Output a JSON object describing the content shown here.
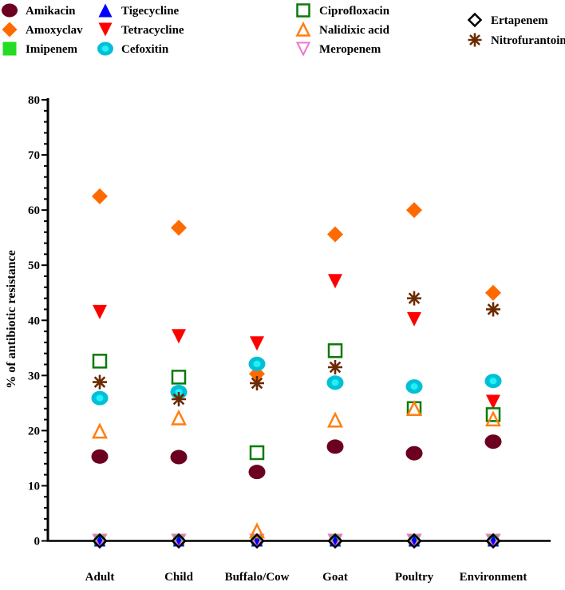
{
  "chart_data": {
    "type": "scatter",
    "title": "",
    "xlabel": "",
    "ylabel": "% of antibiotic resistance",
    "ylim": [
      0,
      80
    ],
    "yticks": [
      0,
      10,
      20,
      30,
      40,
      50,
      60,
      70,
      80
    ],
    "grid": false,
    "legend_position": "top",
    "categories": [
      "Adult",
      "Child",
      "Buffalo/Cow",
      "Goat",
      "Poultry",
      "Environment"
    ],
    "series": [
      {
        "name": "Amikacin",
        "marker": "circle",
        "color": "#6b0020",
        "values": [
          15.3,
          15.2,
          12.5,
          17.1,
          15.9,
          18.0
        ]
      },
      {
        "name": "Amoxyclav",
        "marker": "diamond",
        "color": "#ff6a00",
        "values": [
          62.5,
          56.8,
          30.3,
          55.6,
          60.0,
          45.0
        ]
      },
      {
        "name": "Imipenem",
        "marker": "square",
        "color": "#22dd22",
        "values": [
          0,
          0,
          0,
          0,
          0,
          0
        ]
      },
      {
        "name": "Tigecycline",
        "marker": "triangle-up",
        "color": "#0000ff",
        "values": [
          0,
          0,
          0,
          0,
          0,
          0
        ]
      },
      {
        "name": "Tetracycline",
        "marker": "triangle-down",
        "color": "#ff0000",
        "values": [
          41.5,
          37.1,
          35.8,
          47.1,
          40.2,
          25.2
        ]
      },
      {
        "name": "Cefoxitin",
        "marker": "ring",
        "color": "#00c0d8",
        "values": [
          25.9,
          27.0,
          32.1,
          28.7,
          28.0,
          29.0
        ]
      },
      {
        "name": "Ciprofloxacin",
        "marker": "square-open",
        "color": "#0a7a0a",
        "values": [
          32.6,
          29.7,
          16.0,
          34.5,
          24.0,
          22.9
        ]
      },
      {
        "name": "Nalidixic acid",
        "marker": "triangle-up-open",
        "color": "#ff7f0e",
        "values": [
          19.9,
          22.3,
          1.8,
          21.9,
          24.0,
          22.1
        ]
      },
      {
        "name": "Meropenem",
        "marker": "triangle-down-open",
        "color": "#ee77cc",
        "values": [
          0,
          0,
          0,
          0,
          0,
          0
        ]
      },
      {
        "name": "Ertapenem",
        "marker": "diamond-open",
        "color": "#000000",
        "values": [
          0,
          0,
          0,
          0,
          0,
          0
        ]
      },
      {
        "name": "Nitrofurantoin",
        "marker": "asterisk",
        "color": "#6b2a00",
        "values": [
          28.8,
          25.7,
          28.6,
          31.5,
          44.0,
          42.0
        ]
      }
    ]
  }
}
